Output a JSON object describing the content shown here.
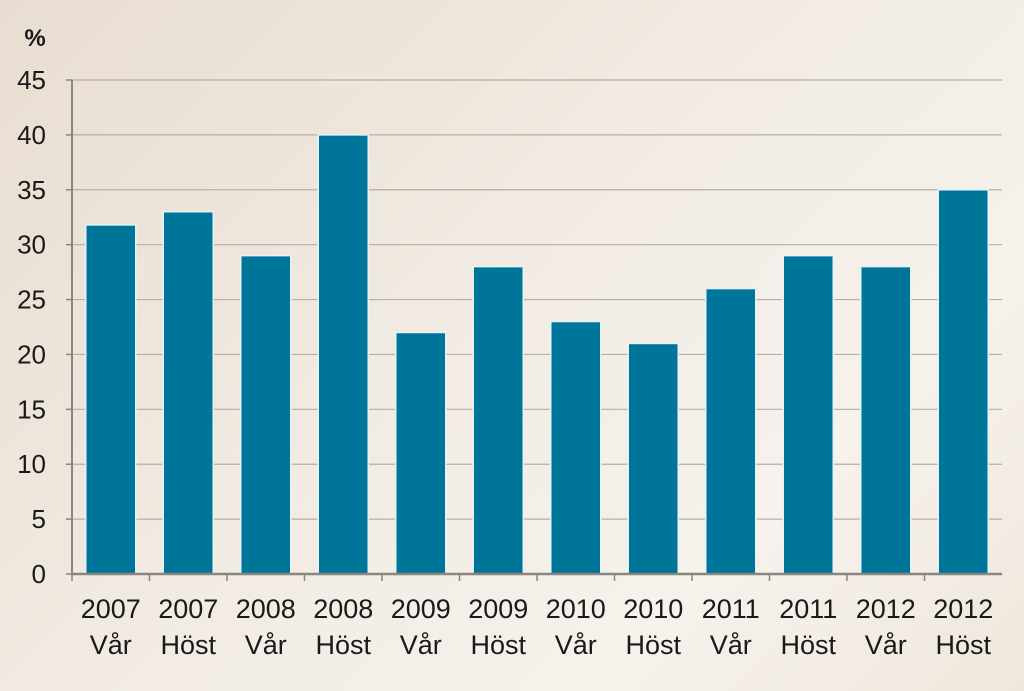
{
  "chart_data": {
    "type": "bar",
    "unit": "%",
    "categories": [
      [
        "2007",
        "Vår"
      ],
      [
        "2007",
        "Höst"
      ],
      [
        "2008",
        "Vår"
      ],
      [
        "2008",
        "Höst"
      ],
      [
        "2009",
        "Vår"
      ],
      [
        "2009",
        "Höst"
      ],
      [
        "2010",
        "Vår"
      ],
      [
        "2010",
        "Höst"
      ],
      [
        "2011",
        "Vår"
      ],
      [
        "2011",
        "Höst"
      ],
      [
        "2012",
        "Vår"
      ],
      [
        "2012",
        "Höst"
      ]
    ],
    "values": [
      31.8,
      33,
      29,
      40,
      22,
      28,
      23,
      21,
      26,
      29,
      28,
      35
    ],
    "ylim": [
      0,
      45
    ],
    "yticks": [
      "0",
      "5",
      "10",
      "15",
      "20",
      "25",
      "30",
      "35",
      "40",
      "45"
    ],
    "grid": true,
    "bar_color": "#00759a",
    "grid_color": "#b8aea3",
    "axis_color": "#8a8580"
  }
}
